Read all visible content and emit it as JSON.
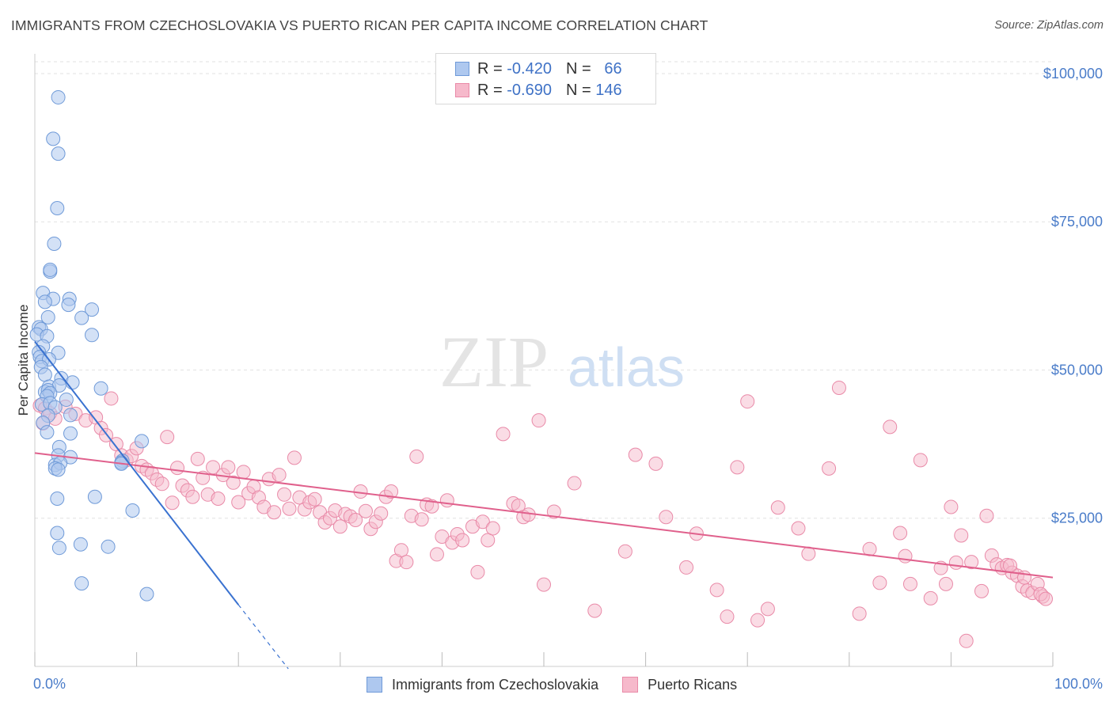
{
  "header": {
    "title": "IMMIGRANTS FROM CZECHOSLOVAKIA VS PUERTO RICAN PER CAPITA INCOME CORRELATION CHART",
    "source": "Source: ZipAtlas.com"
  },
  "watermark": {
    "zip": "ZIP",
    "atlas": "atlas"
  },
  "legend": {
    "rows": [
      {
        "r_label": "R =",
        "r_value": "-0.420",
        "n_label": "N =",
        "n_value": "66"
      },
      {
        "r_label": "R =",
        "r_value": "-0.690",
        "n_label": "N =",
        "n_value": "146"
      }
    ]
  },
  "colors": {
    "blue_fill": "#aec8ef",
    "blue_stroke": "#6f9ad8",
    "blue_line": "#3a72d0",
    "pink_fill": "#f6b9cb",
    "pink_stroke": "#e98aa8",
    "pink_line": "#e0608c",
    "axis_text": "#4a7cc9",
    "grid": "#e2e2e2"
  },
  "chart_data": {
    "type": "scatter",
    "title": "IMMIGRANTS FROM CZECHOSLOVAKIA VS PUERTO RICAN PER CAPITA INCOME CORRELATION CHART",
    "xlabel": "",
    "ylabel": "Per Capita Income",
    "xlim": [
      0,
      100
    ],
    "ylim": [
      0,
      102000
    ],
    "x_tick_labels": [
      "0.0%",
      "100.0%"
    ],
    "y_ticks": [
      25000,
      50000,
      75000,
      100000
    ],
    "y_tick_labels": [
      "$25,000",
      "$50,000",
      "$75,000",
      "$100,000"
    ],
    "grid": true,
    "legend_position": "top-center",
    "series": [
      {
        "name": "Immigrants from Czechoslovakia",
        "color": "#6f9ad8",
        "trend": {
          "x": [
            0.0,
            20.0
          ],
          "y": [
            54800,
            10400
          ]
        },
        "trend_dashed": {
          "x": [
            20.0,
            24.9
          ],
          "y": [
            10400,
            -400
          ]
        },
        "points": [
          [
            2.3,
            96000
          ],
          [
            1.8,
            89000
          ],
          [
            2.3,
            86500
          ],
          [
            2.2,
            77300
          ],
          [
            1.9,
            71300
          ],
          [
            1.5,
            66600
          ],
          [
            1.5,
            66900
          ],
          [
            0.8,
            63000
          ],
          [
            3.4,
            62000
          ],
          [
            1.8,
            62000
          ],
          [
            1.0,
            61500
          ],
          [
            3.3,
            61000
          ],
          [
            5.6,
            60200
          ],
          [
            4.6,
            58800
          ],
          [
            1.3,
            58900
          ],
          [
            0.4,
            57200
          ],
          [
            0.6,
            56900
          ],
          [
            0.2,
            56000
          ],
          [
            1.2,
            55700
          ],
          [
            5.6,
            55900
          ],
          [
            0.8,
            54000
          ],
          [
            0.4,
            53000
          ],
          [
            2.3,
            52900
          ],
          [
            0.5,
            52200
          ],
          [
            0.7,
            51500
          ],
          [
            1.4,
            51800
          ],
          [
            0.6,
            50500
          ],
          [
            1.0,
            49200
          ],
          [
            2.6,
            48600
          ],
          [
            3.7,
            47900
          ],
          [
            1.4,
            47200
          ],
          [
            6.5,
            46900
          ],
          [
            2.4,
            47400
          ],
          [
            1.0,
            46300
          ],
          [
            1.3,
            46600
          ],
          [
            1.5,
            46100
          ],
          [
            1.2,
            45600
          ],
          [
            3.1,
            45000
          ],
          [
            0.7,
            44200
          ],
          [
            1.5,
            44400
          ],
          [
            2.0,
            43700
          ],
          [
            1.3,
            42300
          ],
          [
            3.5,
            42400
          ],
          [
            0.8,
            41100
          ],
          [
            1.2,
            39500
          ],
          [
            3.5,
            39300
          ],
          [
            2.4,
            37000
          ],
          [
            10.5,
            38000
          ],
          [
            2.3,
            35600
          ],
          [
            3.5,
            35300
          ],
          [
            2.0,
            34000
          ],
          [
            2.5,
            34300
          ],
          [
            8.6,
            34700
          ],
          [
            2.0,
            33400
          ],
          [
            2.3,
            33200
          ],
          [
            8.5,
            34400
          ],
          [
            8.5,
            34200
          ],
          [
            2.2,
            28300
          ],
          [
            5.9,
            28600
          ],
          [
            9.6,
            26300
          ],
          [
            2.2,
            22500
          ],
          [
            7.2,
            20200
          ],
          [
            4.5,
            20600
          ],
          [
            2.4,
            20000
          ],
          [
            4.6,
            14000
          ],
          [
            11.0,
            12200
          ]
        ]
      },
      {
        "name": "Puerto Ricans",
        "color": "#e98aa8",
        "trend": {
          "x": [
            0.0,
            100.0
          ],
          "y": [
            36000,
            15000
          ]
        },
        "points": [
          [
            0.5,
            44000
          ],
          [
            1.0,
            43500
          ],
          [
            1.5,
            42700
          ],
          [
            2.0,
            41800
          ],
          [
            0.8,
            41000
          ],
          [
            3.0,
            43800
          ],
          [
            4.0,
            42600
          ],
          [
            5.0,
            41500
          ],
          [
            6.0,
            42000
          ],
          [
            6.5,
            40200
          ],
          [
            7.0,
            39000
          ],
          [
            7.5,
            45200
          ],
          [
            8.0,
            37500
          ],
          [
            8.5,
            35600
          ],
          [
            9.0,
            34800
          ],
          [
            9.5,
            35500
          ],
          [
            10.0,
            36800
          ],
          [
            10.5,
            33800
          ],
          [
            11.0,
            33200
          ],
          [
            11.5,
            32600
          ],
          [
            12.0,
            31500
          ],
          [
            12.5,
            30800
          ],
          [
            13.0,
            38700
          ],
          [
            13.5,
            27600
          ],
          [
            14.0,
            33500
          ],
          [
            14.5,
            30500
          ],
          [
            15.0,
            29700
          ],
          [
            15.5,
            28600
          ],
          [
            16.0,
            35000
          ],
          [
            16.5,
            31800
          ],
          [
            17.0,
            29000
          ],
          [
            17.5,
            33600
          ],
          [
            18.0,
            28300
          ],
          [
            18.5,
            32300
          ],
          [
            19.0,
            33600
          ],
          [
            19.5,
            31000
          ],
          [
            20.0,
            27700
          ],
          [
            20.5,
            32800
          ],
          [
            21.0,
            29200
          ],
          [
            21.5,
            30300
          ],
          [
            22.0,
            28500
          ],
          [
            22.5,
            26900
          ],
          [
            23.0,
            31600
          ],
          [
            23.5,
            26000
          ],
          [
            24.0,
            32300
          ],
          [
            24.5,
            29000
          ],
          [
            25.0,
            26600
          ],
          [
            25.5,
            35200
          ],
          [
            26.0,
            28500
          ],
          [
            26.5,
            26500
          ],
          [
            27.0,
            27700
          ],
          [
            27.5,
            28200
          ],
          [
            28.0,
            26000
          ],
          [
            28.5,
            24300
          ],
          [
            29.0,
            25000
          ],
          [
            29.5,
            26300
          ],
          [
            30.0,
            23600
          ],
          [
            30.5,
            25700
          ],
          [
            31.0,
            25300
          ],
          [
            31.5,
            24700
          ],
          [
            32.0,
            29500
          ],
          [
            32.5,
            26200
          ],
          [
            33.0,
            23200
          ],
          [
            33.5,
            24400
          ],
          [
            34.0,
            25800
          ],
          [
            34.5,
            28600
          ],
          [
            35.0,
            29500
          ],
          [
            35.5,
            17800
          ],
          [
            36.0,
            19600
          ],
          [
            36.5,
            17600
          ],
          [
            37.0,
            25400
          ],
          [
            37.5,
            35400
          ],
          [
            38.0,
            24800
          ],
          [
            38.5,
            27300
          ],
          [
            39.0,
            27000
          ],
          [
            39.5,
            18900
          ],
          [
            40.0,
            21900
          ],
          [
            40.5,
            28000
          ],
          [
            41.0,
            20900
          ],
          [
            41.5,
            22300
          ],
          [
            42.0,
            21300
          ],
          [
            43.0,
            23600
          ],
          [
            43.5,
            15900
          ],
          [
            44.0,
            24400
          ],
          [
            44.5,
            21300
          ],
          [
            45.0,
            23300
          ],
          [
            46.0,
            39200
          ],
          [
            47.0,
            27500
          ],
          [
            47.5,
            27100
          ],
          [
            48.0,
            25200
          ],
          [
            48.5,
            25600
          ],
          [
            49.5,
            41500
          ],
          [
            50.0,
            13800
          ],
          [
            51.0,
            26100
          ],
          [
            53.0,
            30900
          ],
          [
            55.0,
            9400
          ],
          [
            58.0,
            19400
          ],
          [
            59.0,
            35700
          ],
          [
            61.0,
            34200
          ],
          [
            62.0,
            25200
          ],
          [
            64.0,
            16700
          ],
          [
            65.0,
            22400
          ],
          [
            67.0,
            12900
          ],
          [
            68.0,
            8400
          ],
          [
            69.0,
            33600
          ],
          [
            70.0,
            44700
          ],
          [
            71.0,
            7800
          ],
          [
            72.0,
            9700
          ],
          [
            73.0,
            26800
          ],
          [
            75.0,
            23300
          ],
          [
            76.0,
            19000
          ],
          [
            78.0,
            33400
          ],
          [
            79.0,
            47000
          ],
          [
            81.0,
            8900
          ],
          [
            82.0,
            19800
          ],
          [
            83.0,
            14100
          ],
          [
            84.0,
            40400
          ],
          [
            85.0,
            22500
          ],
          [
            85.5,
            18600
          ],
          [
            86.0,
            13900
          ],
          [
            87.0,
            34800
          ],
          [
            88.0,
            11500
          ],
          [
            89.0,
            16600
          ],
          [
            89.5,
            13900
          ],
          [
            90.0,
            26900
          ],
          [
            90.5,
            17500
          ],
          [
            91.0,
            22100
          ],
          [
            92.0,
            17600
          ],
          [
            93.0,
            12700
          ],
          [
            93.5,
            25400
          ],
          [
            94.0,
            18700
          ],
          [
            94.5,
            17200
          ],
          [
            95.0,
            16600
          ],
          [
            95.5,
            17100
          ],
          [
            96.0,
            15800
          ],
          [
            96.5,
            15300
          ],
          [
            97.0,
            13500
          ],
          [
            97.5,
            12800
          ],
          [
            98.0,
            12400
          ],
          [
            98.5,
            13900
          ],
          [
            99.0,
            11800
          ],
          [
            91.5,
            4300
          ],
          [
            95.8,
            17000
          ],
          [
            97.2,
            15000
          ],
          [
            98.8,
            12200
          ],
          [
            99.3,
            11400
          ]
        ]
      }
    ]
  }
}
